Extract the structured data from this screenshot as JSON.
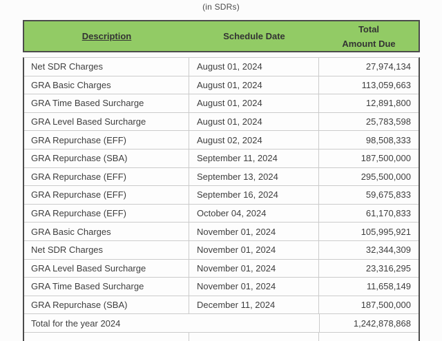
{
  "chart_data": {
    "type": "table",
    "title": "(in SDRs)",
    "headers": {
      "description": "Description",
      "schedule_date": "Schedule Date",
      "amount_line1": "Total",
      "amount_line2": "Amount Due"
    },
    "rows": [
      {
        "description": "Net SDR Charges",
        "date": "August 01, 2024",
        "amount": "27,974,134"
      },
      {
        "description": "GRA Basic Charges",
        "date": "August 01, 2024",
        "amount": "113,059,663"
      },
      {
        "description": "GRA Time Based Surcharge",
        "date": "August 01, 2024",
        "amount": "12,891,800"
      },
      {
        "description": "GRA Level Based Surcharge",
        "date": "August 01, 2024",
        "amount": "25,783,598"
      },
      {
        "description": "GRA Repurchase (EFF)",
        "date": "August 02, 2024",
        "amount": "98,508,333"
      },
      {
        "description": "GRA Repurchase (SBA)",
        "date": "September 11, 2024",
        "amount": "187,500,000"
      },
      {
        "description": "GRA Repurchase (EFF)",
        "date": "September 13, 2024",
        "amount": "295,500,000"
      },
      {
        "description": "GRA Repurchase (EFF)",
        "date": "September 16, 2024",
        "amount": "59,675,833"
      },
      {
        "description": "GRA Repurchase (EFF)",
        "date": "October 04, 2024",
        "amount": "61,170,833"
      },
      {
        "description": "GRA Basic Charges",
        "date": "November 01, 2024",
        "amount": "105,995,921"
      },
      {
        "description": "Net SDR Charges",
        "date": "November 01, 2024",
        "amount": "32,344,309"
      },
      {
        "description": "GRA Level Based Surcharge",
        "date": "November 01, 2024",
        "amount": "23,316,295"
      },
      {
        "description": "GRA Time Based Surcharge",
        "date": "November 01, 2024",
        "amount": "11,658,149"
      },
      {
        "description": "GRA Repurchase (SBA)",
        "date": "December 11, 2024",
        "amount": "187,500,000"
      }
    ],
    "total_row": {
      "label": "Total for the year 2024",
      "amount": "1,242,878,868"
    },
    "layout": {
      "amount_alignment": "right",
      "description_alignment": "left",
      "header_alignment": "center",
      "grid": "on"
    }
  },
  "colors": {
    "header_bg": "#92cb65",
    "border_dark": "#4b4b4b",
    "divider": "#cbcbcb",
    "body_text": "#3e3e3e",
    "header_text": "#333333",
    "page_bg": "#fcfcfc"
  }
}
